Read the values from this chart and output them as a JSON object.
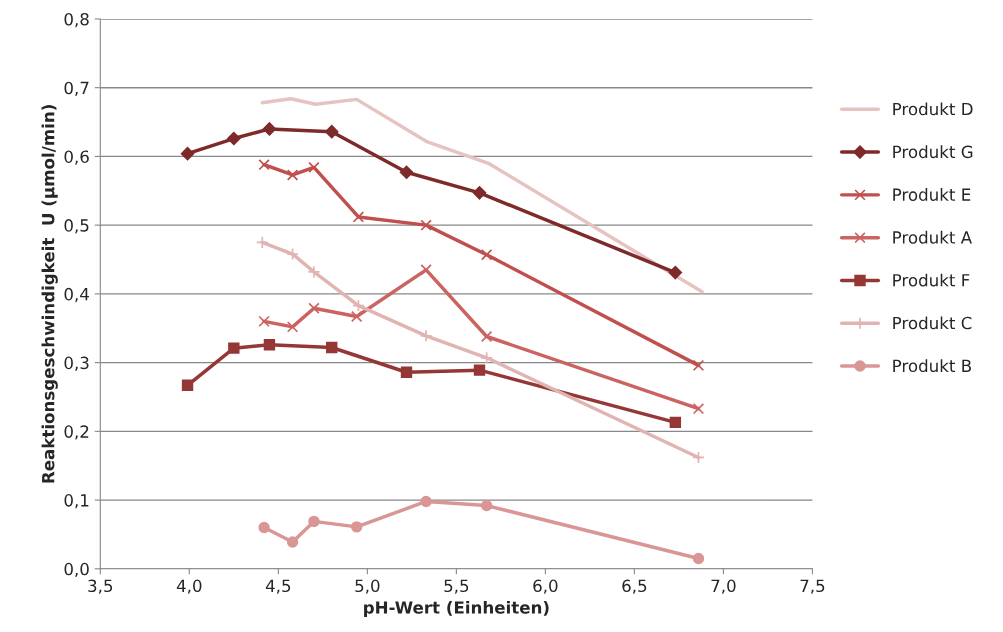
{
  "chart_data": {
    "type": "line",
    "xlabel": "pH-Wert (Einheiten)",
    "ylabel": "Reaktionsgeschwindigkeit  U (µmol/min)",
    "xlim": [
      3.5,
      7.5
    ],
    "xticks": [
      {
        "value": 3.5,
        "label": "3,5"
      },
      {
        "value": 4.0,
        "label": "4,0"
      },
      {
        "value": 4.5,
        "label": "4,5"
      },
      {
        "value": 5.0,
        "label": "5,0"
      },
      {
        "value": 5.5,
        "label": "5,5"
      },
      {
        "value": 6.0,
        "label": "6,0"
      },
      {
        "value": 6.5,
        "label": "6,5"
      },
      {
        "value": 7.0,
        "label": "7,0"
      },
      {
        "value": 7.5,
        "label": "7,5"
      }
    ],
    "ylim": [
      0,
      0.8
    ],
    "yticks": [
      {
        "value": 0,
        "label": "0,0"
      },
      {
        "value": 0.1,
        "label": "0,1"
      },
      {
        "value": 0.2,
        "label": "0,2"
      },
      {
        "value": 0.3,
        "label": "0,3"
      },
      {
        "value": 0.4,
        "label": "0,4"
      },
      {
        "value": 0.5,
        "label": "0,5"
      },
      {
        "value": 0.6,
        "label": "0,6"
      },
      {
        "value": 0.7,
        "label": "0,7"
      },
      {
        "value": 0.8,
        "label": "0,8"
      }
    ],
    "grid": "y",
    "legend": "right",
    "series": [
      {
        "name": "Produkt D",
        "color": "#e6c3c1",
        "marker": "none",
        "x": [
          4.41,
          4.57,
          4.71,
          4.94,
          5.33,
          5.68,
          6.88
        ],
        "values": [
          0.678,
          0.684,
          0.676,
          0.683,
          0.622,
          0.59,
          0.403
        ]
      },
      {
        "name": "Produkt G",
        "color": "#7f2a2a",
        "marker": "diamond",
        "x": [
          3.99,
          4.25,
          4.45,
          4.8,
          5.22,
          5.63,
          6.73
        ],
        "values": [
          0.604,
          0.626,
          0.64,
          0.636,
          0.577,
          0.547,
          0.431
        ]
      },
      {
        "name": "Produkt E",
        "color": "#c0504d",
        "marker": "cross",
        "x": [
          4.42,
          4.58,
          4.7,
          4.95,
          5.33,
          5.67,
          6.86
        ],
        "values": [
          0.588,
          0.573,
          0.584,
          0.512,
          0.5,
          0.457,
          0.296
        ]
      },
      {
        "name": "Produkt A",
        "color": "#cb6360",
        "marker": "cross",
        "x": [
          4.42,
          4.58,
          4.7,
          4.94,
          5.33,
          5.67,
          6.86
        ],
        "values": [
          0.36,
          0.352,
          0.379,
          0.367,
          0.435,
          0.338,
          0.233
        ]
      },
      {
        "name": "Produkt F",
        "color": "#953735",
        "marker": "square",
        "x": [
          3.99,
          4.25,
          4.45,
          4.8,
          5.22,
          5.63,
          6.73
        ],
        "values": [
          0.267,
          0.321,
          0.326,
          0.322,
          0.286,
          0.289,
          0.213
        ]
      },
      {
        "name": "Produkt C",
        "color": "#e0b4b2",
        "marker": "plus",
        "x": [
          4.41,
          4.58,
          4.7,
          4.95,
          5.33,
          5.67,
          6.86
        ],
        "values": [
          0.475,
          0.458,
          0.432,
          0.383,
          0.339,
          0.307,
          0.162
        ]
      },
      {
        "name": "Produkt B",
        "color": "#d99694",
        "marker": "circle",
        "x": [
          4.42,
          4.58,
          4.7,
          4.94,
          5.33,
          5.67,
          6.86
        ],
        "values": [
          0.06,
          0.039,
          0.069,
          0.061,
          0.098,
          0.092,
          0.015
        ]
      }
    ]
  }
}
